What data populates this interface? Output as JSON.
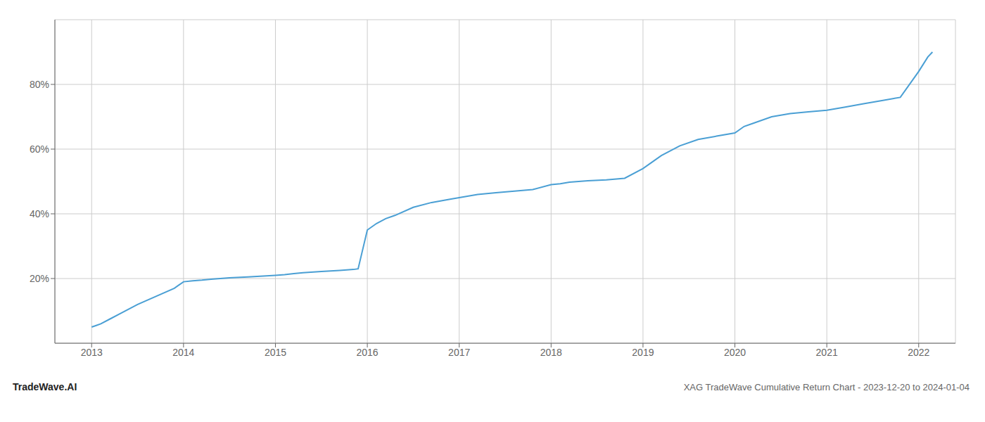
{
  "chart_data": {
    "type": "line",
    "title": "XAG TradeWave Cumulative Return Chart - 2023-12-20 to 2024-01-04",
    "annotations": [
      "TradeWave.AI"
    ],
    "color": "#4a9fd4",
    "x": [
      2013.0,
      2013.05,
      2013.1,
      2013.2,
      2013.3,
      2013.5,
      2013.7,
      2013.9,
      2014.0,
      2014.1,
      2014.2,
      2014.3,
      2014.5,
      2014.7,
      2014.9,
      2015.0,
      2015.1,
      2015.2,
      2015.3,
      2015.5,
      2015.7,
      2015.85,
      2015.9,
      2016.0,
      2016.1,
      2016.2,
      2016.3,
      2016.5,
      2016.7,
      2016.9,
      2017.0,
      2017.2,
      2017.4,
      2017.6,
      2017.8,
      2018.0,
      2018.1,
      2018.2,
      2018.4,
      2018.6,
      2018.8,
      2019.0,
      2019.1,
      2019.2,
      2019.4,
      2019.6,
      2019.8,
      2020.0,
      2020.1,
      2020.2,
      2020.4,
      2020.6,
      2020.8,
      2021.0,
      2021.2,
      2021.4,
      2021.6,
      2021.8,
      2022.0,
      2022.1,
      2022.15
    ],
    "values": [
      5,
      5.5,
      6,
      7.5,
      9,
      12,
      14.5,
      17,
      19,
      19.3,
      19.5,
      19.8,
      20.2,
      20.5,
      20.8,
      21,
      21.2,
      21.5,
      21.8,
      22.2,
      22.5,
      22.8,
      23.0,
      35,
      37,
      38.5,
      39.5,
      42,
      43.5,
      44.5,
      45,
      46,
      46.5,
      47,
      47.5,
      49,
      49.3,
      49.8,
      50.2,
      50.5,
      51,
      54,
      56,
      58,
      61,
      63,
      64,
      65,
      67,
      68,
      70,
      71,
      71.5,
      72,
      73,
      74,
      75,
      76,
      84,
      88.5,
      90
    ],
    "xlim": [
      2012.6,
      2022.4
    ],
    "ylim": [
      0,
      100
    ],
    "xticks": [
      2013,
      2014,
      2015,
      2016,
      2017,
      2018,
      2019,
      2020,
      2021,
      2022
    ],
    "yticks": [
      {
        "value": 20,
        "label": "20%"
      },
      {
        "value": 40,
        "label": "40%"
      },
      {
        "value": 60,
        "label": "60%"
      },
      {
        "value": 80,
        "label": "80%"
      }
    ],
    "grid": true
  }
}
